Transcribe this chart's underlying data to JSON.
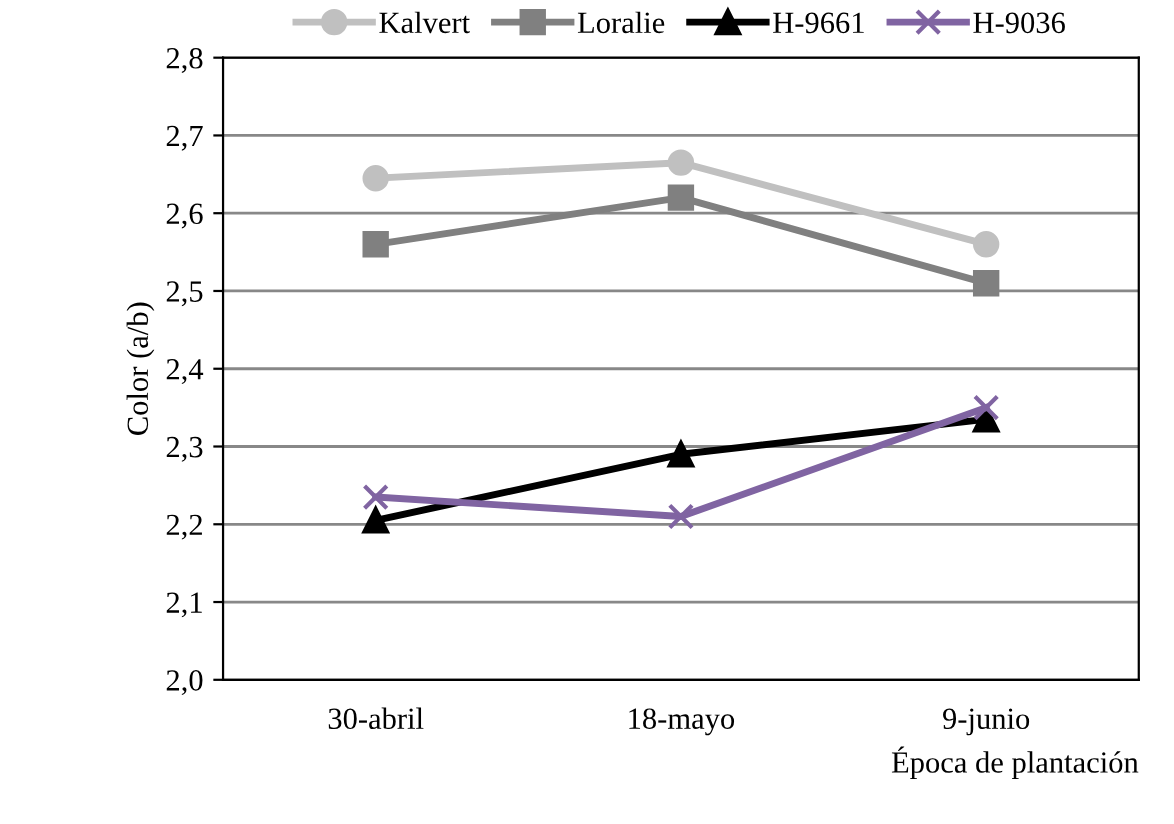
{
  "chart_data": {
    "type": "line",
    "ylabel": "Color (a/b)",
    "xlabel": "Época de plantación",
    "categories": [
      "30-abril",
      "18-mayo",
      "9-junio"
    ],
    "series": [
      {
        "name": "Kalvert",
        "color": "#c0c0c0",
        "marker": "circle",
        "values": [
          2.645,
          2.665,
          2.56
        ]
      },
      {
        "name": "Loralie",
        "color": "#808080",
        "marker": "square",
        "values": [
          2.56,
          2.62,
          2.51
        ]
      },
      {
        "name": "H-9661",
        "color": "#000000",
        "marker": "triangle",
        "values": [
          2.205,
          2.29,
          2.335
        ]
      },
      {
        "name": "H-9036",
        "color": "#8064a2",
        "marker": "cross",
        "values": [
          2.235,
          2.21,
          2.35
        ]
      }
    ],
    "ylim": [
      2.0,
      2.8
    ],
    "yticks": [
      {
        "value": 2.0,
        "label": "2,0"
      },
      {
        "value": 2.1,
        "label": "2,1"
      },
      {
        "value": 2.2,
        "label": "2,2"
      },
      {
        "value": 2.3,
        "label": "2,3"
      },
      {
        "value": 2.4,
        "label": "2,4"
      },
      {
        "value": 2.5,
        "label": "2,5"
      },
      {
        "value": 2.6,
        "label": "2,6"
      },
      {
        "value": 2.7,
        "label": "2,7"
      },
      {
        "value": 2.8,
        "label": "2,8"
      }
    ],
    "grid": "y",
    "legend": "top"
  }
}
